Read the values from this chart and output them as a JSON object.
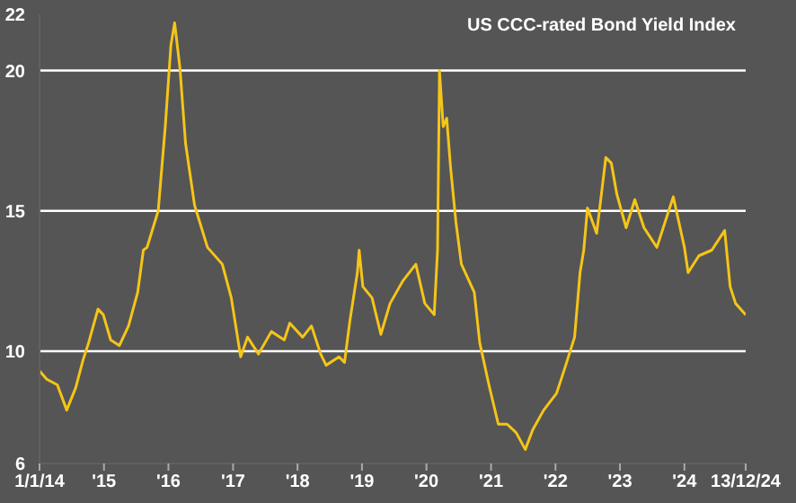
{
  "chart_data": {
    "type": "line",
    "title": "US CCC-rated Bond Yield Index",
    "x": [
      "2014-01-01",
      "2014-02-11",
      "2014-04-12",
      "2014-06-04",
      "2014-07-25",
      "2014-09-05",
      "2014-10-06",
      "2014-11-28",
      "2014-12-28",
      "2015-02-08",
      "2015-03-29",
      "2015-05-20",
      "2015-07-11",
      "2015-08-12",
      "2015-09-02",
      "2015-11-04",
      "2015-12-14",
      "2016-01-15",
      "2016-02-05",
      "2016-03-06",
      "2016-04-07",
      "2016-05-28",
      "2016-08-09",
      "2016-11-01",
      "2016-12-22",
      "2017-02-13",
      "2017-03-24",
      "2017-05-25",
      "2017-08-06",
      "2017-10-18",
      "2017-11-18",
      "2018-01-30",
      "2018-03-21",
      "2018-05-12",
      "2018-06-12",
      "2018-08-24",
      "2018-09-24",
      "2018-10-25",
      "2018-12-06",
      "2018-12-16",
      "2019-01-06",
      "2019-02-27",
      "2019-04-18",
      "2019-06-09",
      "2019-08-20",
      "2019-11-02",
      "2019-12-23",
      "2020-02-14",
      "2020-03-04",
      "2020-03-15",
      "2020-04-05",
      "2020-04-25",
      "2020-05-16",
      "2020-06-16",
      "2020-07-17",
      "2020-09-28",
      "2020-10-29",
      "2020-12-20",
      "2021-02-11",
      "2021-04-02",
      "2021-05-23",
      "2021-07-14",
      "2021-08-25",
      "2021-10-26",
      "2022-01-07",
      "2022-02-28",
      "2022-04-19",
      "2022-05-20",
      "2022-06-10",
      "2022-07-01",
      "2022-08-22",
      "2022-10-13",
      "2022-11-13",
      "2022-12-14",
      "2023-02-05",
      "2023-03-26",
      "2023-05-17",
      "2023-07-29",
      "2023-10-30",
      "2024-01-01",
      "2024-01-22",
      "2024-03-23",
      "2024-06-04",
      "2024-08-16",
      "2024-09-16",
      "2024-10-17",
      "2024-12-13"
    ],
    "series": [
      {
        "color": "#f5c518",
        "values": [
          9.3,
          9.0,
          8.8,
          7.9,
          8.7,
          9.7,
          10.3,
          11.5,
          11.3,
          10.4,
          10.2,
          10.9,
          12.1,
          13.6,
          13.7,
          15.0,
          18.0,
          20.9,
          21.7,
          20.1,
          17.4,
          15.2,
          13.7,
          13.1,
          11.9,
          9.8,
          10.5,
          9.9,
          10.7,
          10.4,
          11.0,
          10.5,
          10.9,
          9.9,
          9.5,
          9.8,
          9.6,
          11.1,
          12.8,
          13.6,
          12.3,
          11.9,
          10.6,
          11.7,
          12.5,
          13.1,
          11.7,
          11.3,
          13.6,
          20.0,
          18.0,
          18.3,
          16.6,
          14.6,
          13.1,
          12.1,
          10.3,
          8.8,
          7.4,
          7.4,
          7.1,
          6.5,
          7.2,
          7.9,
          8.5,
          9.5,
          10.5,
          12.8,
          13.6,
          15.1,
          14.2,
          16.9,
          16.7,
          15.6,
          14.4,
          15.4,
          14.4,
          13.7,
          15.5,
          13.7,
          12.8,
          13.4,
          13.6,
          14.3,
          12.3,
          11.7,
          11.3
        ]
      }
    ],
    "xlim": [
      "2014-01-01",
      "2024-12-13"
    ],
    "xticks": [
      {
        "value": "2014-01-01",
        "label": "1/1/14"
      },
      {
        "value": "2015-01-01",
        "label": "'15"
      },
      {
        "value": "2016-01-01",
        "label": "'16"
      },
      {
        "value": "2017-01-01",
        "label": "'17"
      },
      {
        "value": "2018-01-01",
        "label": "'18"
      },
      {
        "value": "2019-01-01",
        "label": "'19"
      },
      {
        "value": "2020-01-01",
        "label": "'20"
      },
      {
        "value": "2021-01-01",
        "label": "'21"
      },
      {
        "value": "2022-01-01",
        "label": "'22"
      },
      {
        "value": "2023-01-01",
        "label": "'23"
      },
      {
        "value": "2024-01-01",
        "label": "'24"
      },
      {
        "value": "2024-12-13",
        "label": "13/12/24"
      }
    ],
    "ylim": [
      6,
      22
    ],
    "yticks": [
      6,
      10,
      15,
      20,
      22
    ],
    "grid": "y",
    "legend": false,
    "marker": "none",
    "line_style": "solid"
  }
}
